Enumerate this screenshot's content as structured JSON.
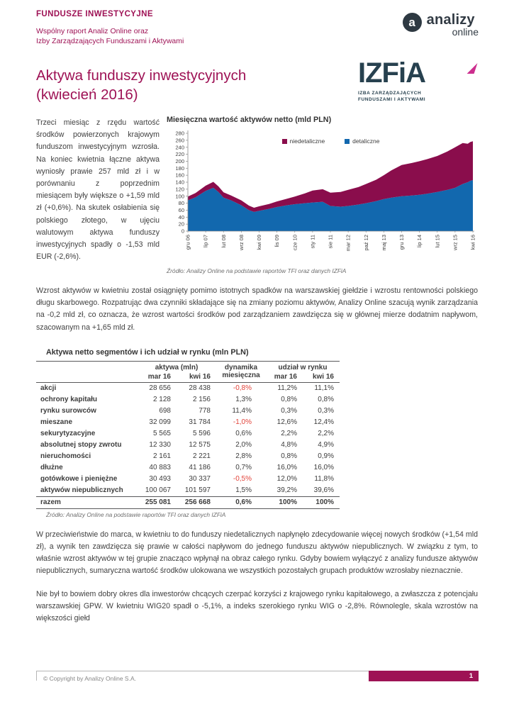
{
  "colors": {
    "accent": "#9e1255",
    "chart_niedetaliczne": "#8a0d4c",
    "chart_detaliczne": "#1268ae",
    "negative_value": "#e2433a",
    "izfia_navy": "#27414f",
    "izfia_pink": "#cc2e8e"
  },
  "header": {
    "kicker": "FUNDUSZE INWESTYCYJNE",
    "subtitle_line1": "Wspólny raport Analiz Online oraz",
    "subtitle_line2": "Izby Zarządzających Funduszami i Aktywami",
    "title_line1": "Aktywa funduszy inwestycyjnych",
    "title_line2": "(kwiecień 2016)"
  },
  "logos": {
    "analizy_mark": "a",
    "analizy_name": "analizy",
    "analizy_sub": "online",
    "izfia_text": "IZFiA",
    "izfia_caption1": "IZBA ZARZĄDZAJĄCYCH",
    "izfia_caption2": "FUNDUSZAMI I AKTYWAMI"
  },
  "paragraphs": {
    "intro": "Trzeci miesiąc z rzędu wartość środków powierzonych krajowym funduszom inwestycyjnym wzrosła. Na koniec kwietnia łączne aktywa wyniosły prawie 257 mld zł i w porównaniu z poprzednim miesiącem były większe o +1,59 mld zł (+0,6%). Na skutek osłabienia się polskiego złotego, w ujęciu walutowym aktywa funduszy inwestycyjnych spadły o -1,53 mld EUR (-2,6%).",
    "p2": "Wzrost aktywów w kwietniu został osiągnięty pomimo istotnych spadków na warszawskiej giełdzie i wzrostu rentowności polskiego długu skarbowego. Rozpatrując dwa czynniki składające się na zmiany poziomu aktywów, Analizy Online szacują wynik zarządzania na -0,2 mld zł, co oznacza, że wzrost wartości środków pod zarządzaniem zawdzięcza się w głównej mierze dodatnim napływom, szacowanym na +1,65 mld zł.",
    "p3": "W przeciwieństwie do marca, w kwietniu to do funduszy niedetalicznych napłynęło zdecydowanie więcej nowych środków (+1,54 mld zł), a wynik ten zawdzięcza się prawie w całości napływom do jednego funduszu aktywów niepublicznych. W związku z tym, to właśnie wzrost aktywów w tej grupie znacząco wpłynął na obraz całego rynku. Gdyby bowiem wyłączyć z analizy fundusze aktywów niepublicznych, sumaryczna wartość środków ulokowana we wszystkich pozostałych grupach produktów wzrosłaby nieznacznie.",
    "p4": "Nie był to bowiem dobry okres dla inwestorów chcących czerpać korzyści z krajowego rynku kapitałowego, a zwłaszcza z potencjału warszawskiej GPW. W kwietniu WIG20 spadł o -5,1%, a indeks szerokiego rynku WIG o -2,8%. Równolegle, skala wzrostów na większości giełd"
  },
  "chart": {
    "title": "Miesięczna wartość aktywów netto (mld PLN)",
    "source": "Źródło: Analizy Online na podstawie raportów TFI oraz danych IZFiA"
  },
  "chart_data": {
    "type": "area",
    "stacked": true,
    "title": "Miesięczna wartość aktywów netto (mld PLN)",
    "ylim": [
      0,
      280
    ],
    "ytick_step": 20,
    "legend_position": "top-center",
    "legend": [
      "niedetaliczne",
      "detaliczne"
    ],
    "x_tick_labels": [
      "gru 06",
      "lip 07",
      "lut 08",
      "wrz 08",
      "kwi 09",
      "lis 09",
      "cze 10",
      "sty 11",
      "sie 11",
      "mar 12",
      "paź 12",
      "maj 13",
      "gru 13",
      "lip 14",
      "lut 15",
      "wrz 15",
      "kwi 16"
    ],
    "x_tick_months": [
      0,
      7,
      14,
      21,
      28,
      35,
      42,
      49,
      56,
      63,
      70,
      77,
      84,
      91,
      98,
      105,
      112
    ],
    "months": [
      0,
      3,
      7,
      10,
      12,
      14,
      17,
      21,
      24,
      26,
      28,
      32,
      35,
      39,
      42,
      46,
      49,
      53,
      56,
      60,
      63,
      67,
      70,
      74,
      77,
      80,
      84,
      88,
      91,
      94,
      98,
      102,
      105,
      108,
      110,
      111,
      112
    ],
    "series": [
      {
        "name": "detaliczne",
        "color": "#1268ae",
        "values": [
          88,
          97,
          115,
          124,
          112,
          96,
          88,
          74,
          60,
          55,
          58,
          64,
          69,
          74,
          77,
          80,
          82,
          84,
          72,
          70,
          72,
          76,
          80,
          86,
          92,
          96,
          100,
          102,
          104,
          107,
          112,
          118,
          124,
          135,
          140,
          144,
          146
        ]
      },
      {
        "name": "niedetaliczne",
        "color": "#8a0d4c",
        "values": [
          11,
          12,
          15,
          17,
          16,
          15,
          14,
          14,
          13,
          12,
          13,
          14,
          16,
          19,
          22,
          28,
          34,
          36,
          38,
          42,
          46,
          50,
          55,
          61,
          68,
          78,
          89,
          93,
          96,
          99,
          103,
          110,
          116,
          117,
          110,
          111,
          111
        ]
      }
    ]
  },
  "table": {
    "title": "Aktywa netto segmentów i ich udział w rynku (mln PLN)",
    "groups": {
      "aktywa": "aktywa (mln)",
      "dynamika": "dynamika miesięczna",
      "udzial": "udział w rynku"
    },
    "sub": [
      "mar 16",
      "kwi 16",
      "mar 16",
      "kwi 16"
    ],
    "rows": [
      {
        "label": "akcji",
        "mar": "28 656",
        "kwi": "28 438",
        "dyn": "-0,8%",
        "u_mar": "11,2%",
        "u_kwi": "11,1%"
      },
      {
        "label": "ochrony kapitału",
        "mar": "2 128",
        "kwi": "2 156",
        "dyn": "1,3%",
        "u_mar": "0,8%",
        "u_kwi": "0,8%"
      },
      {
        "label": "rynku surowców",
        "mar": "698",
        "kwi": "778",
        "dyn": "11,4%",
        "u_mar": "0,3%",
        "u_kwi": "0,3%"
      },
      {
        "label": "mieszane",
        "mar": "32 099",
        "kwi": "31 784",
        "dyn": "-1,0%",
        "u_mar": "12,6%",
        "u_kwi": "12,4%"
      },
      {
        "label": "sekurytyzacyjne",
        "mar": "5 565",
        "kwi": "5 596",
        "dyn": "0,6%",
        "u_mar": "2,2%",
        "u_kwi": "2,2%"
      },
      {
        "label": "absolutnej stopy zwrotu",
        "mar": "12 330",
        "kwi": "12 575",
        "dyn": "2,0%",
        "u_mar": "4,8%",
        "u_kwi": "4,9%"
      },
      {
        "label": "nieruchomości",
        "mar": "2 161",
        "kwi": "2 221",
        "dyn": "2,8%",
        "u_mar": "0,8%",
        "u_kwi": "0,9%"
      },
      {
        "label": "dłużne",
        "mar": "40 883",
        "kwi": "41 186",
        "dyn": "0,7%",
        "u_mar": "16,0%",
        "u_kwi": "16,0%"
      },
      {
        "label": "gotówkowe i pieniężne",
        "mar": "30 493",
        "kwi": "30 337",
        "dyn": "-0,5%",
        "u_mar": "12,0%",
        "u_kwi": "11,8%"
      },
      {
        "label": "aktywów niepublicznych",
        "mar": "100 067",
        "kwi": "101 597",
        "dyn": "1,5%",
        "u_mar": "39,2%",
        "u_kwi": "39,6%"
      }
    ],
    "total": {
      "label": "razem",
      "mar": "255 081",
      "kwi": "256 668",
      "dyn": "0,6%",
      "u_mar": "100%",
      "u_kwi": "100%"
    },
    "source": "Źródło: Analizy Online na podstawie raportów TFI oraz danych IZFiA"
  },
  "footer": {
    "copyright": "© Copyright by Analizy Online S.A.",
    "page_number": "1"
  }
}
